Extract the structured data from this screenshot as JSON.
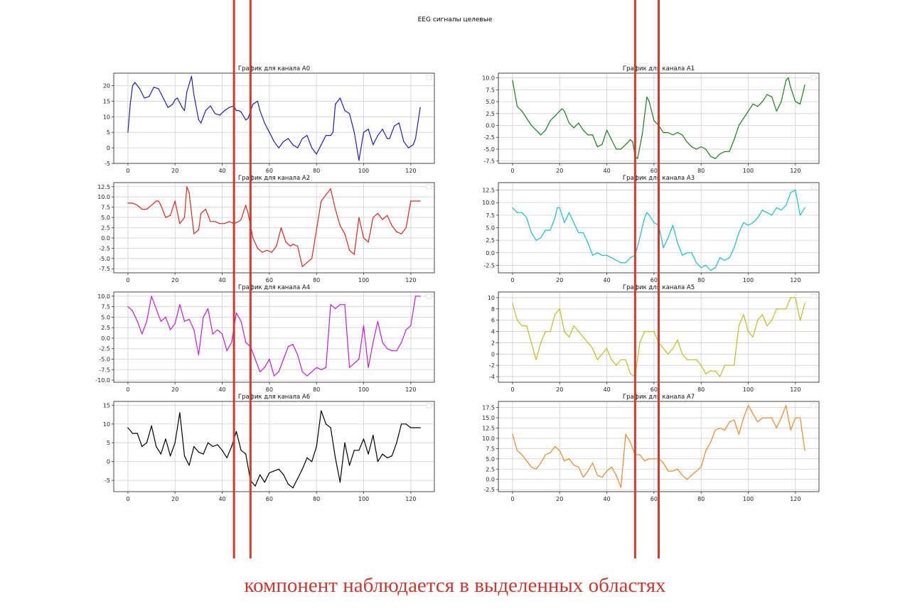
{
  "suptitle": "EEG сигналы целевые",
  "caption": "компонент наблюдается в выделенных областях",
  "highlight_color": "#d23a2e",
  "highlight_x": [
    [
      45,
      52
    ],
    [
      52,
      62
    ]
  ],
  "chart_data": [
    {
      "type": "line",
      "title": "График для канала A0",
      "color": "#1f1fb4",
      "xlim": [
        -6,
        130
      ],
      "ylim": [
        -5,
        24
      ],
      "xticks": [
        0,
        20,
        40,
        60,
        80,
        100,
        120
      ],
      "yticks": [
        -5,
        0,
        5,
        10,
        15,
        20
      ],
      "grid": true,
      "legend": "top-right (empty)",
      "x": [
        0,
        1,
        2,
        3,
        5,
        7,
        9,
        10,
        11,
        13,
        15,
        17,
        19,
        20,
        21,
        23,
        24,
        25,
        27,
        28,
        30,
        31,
        33,
        35,
        37,
        39,
        41,
        43,
        45,
        46,
        47,
        48,
        50,
        51,
        53,
        55,
        56,
        58,
        60,
        62,
        64,
        66,
        68,
        70,
        72,
        74,
        76,
        78,
        80,
        82,
        84,
        86,
        87,
        88,
        90,
        92,
        94,
        96,
        98,
        100,
        102,
        104,
        106,
        108,
        110,
        111,
        113,
        115,
        117,
        119,
        121,
        122,
        124
      ],
      "y": [
        5,
        14,
        20,
        21,
        19,
        16,
        16.5,
        18,
        19.5,
        19,
        16,
        13,
        14,
        15.5,
        16,
        13,
        12,
        18,
        23,
        17,
        9,
        8,
        12,
        13.5,
        11,
        10.5,
        12,
        13,
        13.5,
        12,
        12,
        11.5,
        9,
        9.5,
        14,
        15,
        12,
        8,
        5,
        2,
        0,
        2,
        3,
        1,
        0,
        3,
        4,
        0,
        -2,
        1,
        4,
        4,
        5,
        14,
        16,
        12,
        11,
        5,
        -4,
        5,
        6,
        1,
        4,
        6,
        3,
        3,
        7,
        8,
        2,
        0,
        1,
        3,
        13
      ]
    },
    {
      "type": "line",
      "title": "График для канала A1",
      "color": "#1a7f1a",
      "xlim": [
        -6,
        130
      ],
      "ylim": [
        -8,
        11
      ],
      "xticks": [
        0,
        20,
        40,
        60,
        80,
        100,
        120
      ],
      "yticks": [
        -7.5,
        -5.0,
        -2.5,
        0.0,
        2.5,
        5.0,
        7.5,
        10.0
      ],
      "grid": true,
      "legend": "top-right (empty)",
      "x": [
        0,
        2,
        4,
        6,
        8,
        10,
        12,
        14,
        16,
        18,
        20,
        21,
        22,
        24,
        26,
        28,
        30,
        32,
        34,
        36,
        38,
        40,
        42,
        44,
        46,
        48,
        50,
        51,
        52,
        53,
        55,
        57,
        58,
        60,
        62,
        64,
        66,
        68,
        70,
        72,
        74,
        76,
        78,
        80,
        82,
        84,
        86,
        88,
        90,
        92,
        94,
        96,
        98,
        100,
        102,
        104,
        106,
        108,
        110,
        112,
        114,
        116,
        117,
        118,
        120,
        122,
        124
      ],
      "y": [
        9.5,
        4,
        3,
        1.5,
        0,
        -1,
        -2,
        -1,
        1,
        2,
        3,
        3.5,
        3,
        0.5,
        -0.5,
        0.5,
        -1,
        -2,
        -2,
        -4.5,
        -4,
        -1,
        -3,
        -5,
        -5,
        -4,
        -3,
        -3.5,
        -6.5,
        -7,
        -2,
        6,
        5,
        1,
        0,
        -1.5,
        -1.5,
        -2,
        -1.5,
        -2,
        -3.5,
        -4.5,
        -5,
        -4.5,
        -5,
        -6.5,
        -7,
        -6,
        -5.5,
        -5.5,
        -3,
        0,
        1.5,
        3,
        4.5,
        4,
        5,
        6.5,
        6,
        3,
        5,
        9.5,
        10,
        8,
        5,
        4.5,
        8.5
      ]
    },
    {
      "type": "line",
      "title": "График для канала A2",
      "color": "#d62a1e",
      "xlim": [
        -6,
        130
      ],
      "ylim": [
        -8.5,
        13.5
      ],
      "xticks": [
        0,
        20,
        40,
        60,
        80,
        100,
        120
      ],
      "yticks": [
        -7.5,
        -5.0,
        -2.5,
        0.0,
        2.5,
        5.0,
        7.5,
        10.0,
        12.5
      ],
      "grid": true,
      "legend": "top-right (empty)",
      "x": [
        0,
        2,
        4,
        6,
        8,
        10,
        12,
        13,
        14,
        16,
        18,
        20,
        22,
        24,
        25,
        26,
        28,
        30,
        31,
        33,
        35,
        37,
        39,
        41,
        43,
        45,
        47,
        48,
        50,
        51,
        53,
        55,
        57,
        59,
        61,
        63,
        65,
        67,
        69,
        70,
        72,
        74,
        76,
        78,
        80,
        82,
        84,
        86,
        88,
        90,
        92,
        94,
        96,
        98,
        100,
        102,
        104,
        106,
        108,
        110,
        112,
        114,
        116,
        118,
        120,
        122,
        124
      ],
      "y": [
        8.5,
        8.5,
        8,
        7,
        7,
        8,
        9,
        9,
        8,
        5,
        5.5,
        9,
        3.5,
        5,
        12.5,
        11,
        1,
        2,
        6,
        7,
        4,
        4,
        3.5,
        3.5,
        4,
        3.5,
        4,
        4.5,
        8,
        6,
        0,
        -2.5,
        -3.5,
        -3,
        -3.5,
        -2,
        2.5,
        -1,
        -2,
        -1.5,
        -2,
        -7,
        -6,
        -5,
        2,
        9,
        10.5,
        12,
        7,
        3,
        1,
        -3,
        -4,
        5,
        0,
        -1,
        5,
        6,
        4.5,
        5.5,
        3,
        1.5,
        1,
        2.5,
        9,
        9,
        9
      ]
    },
    {
      "type": "line",
      "title": "График для канала A3",
      "color": "#17becf",
      "xlim": [
        -6,
        130
      ],
      "ylim": [
        -4,
        14
      ],
      "xticks": [
        0,
        20,
        40,
        60,
        80,
        100,
        120
      ],
      "yticks": [
        -2.5,
        0.0,
        2.5,
        5.0,
        7.5,
        10.0,
        12.5
      ],
      "grid": true,
      "legend": "top-right (empty)",
      "x": [
        0,
        2,
        4,
        6,
        8,
        10,
        12,
        14,
        16,
        18,
        19,
        20,
        22,
        24,
        26,
        28,
        30,
        32,
        34,
        36,
        38,
        40,
        42,
        44,
        46,
        48,
        50,
        52,
        54,
        56,
        57,
        58,
        60,
        62,
        64,
        66,
        68,
        70,
        72,
        74,
        76,
        78,
        80,
        82,
        84,
        86,
        88,
        90,
        92,
        94,
        96,
        98,
        100,
        102,
        104,
        106,
        108,
        110,
        112,
        114,
        116,
        118,
        120,
        122,
        124
      ],
      "y": [
        9,
        8,
        8,
        7,
        4,
        2.5,
        3,
        4.5,
        4.5,
        7,
        9,
        9,
        6,
        8,
        6,
        4,
        4,
        2,
        -0.5,
        0,
        -0.5,
        -0.5,
        -1,
        -1.5,
        -2,
        -2,
        -1,
        -0.5,
        3,
        7,
        8,
        7.5,
        6,
        5.5,
        1,
        3,
        5.5,
        2,
        -0.5,
        0,
        0,
        -2,
        -3,
        -2.5,
        -3.5,
        -3,
        -1,
        -1.5,
        -1,
        1,
        4,
        6,
        5.5,
        6,
        7,
        8.5,
        8,
        7.5,
        9,
        8.5,
        9.5,
        12,
        12.5,
        7.5,
        9
      ]
    },
    {
      "type": "line",
      "title": "График для канала A4",
      "color": "#bf1fcf",
      "xlim": [
        -6,
        130
      ],
      "ylim": [
        -10.5,
        11
      ],
      "xticks": [
        0,
        20,
        40,
        60,
        80,
        100,
        120
      ],
      "yticks": [
        -10.0,
        -7.5,
        -5.0,
        -2.5,
        0.0,
        2.5,
        5.0,
        7.5,
        10.0
      ],
      "grid": true,
      "legend": "top-right (empty)",
      "x": [
        0,
        2,
        4,
        6,
        8,
        10,
        12,
        14,
        16,
        18,
        20,
        22,
        24,
        26,
        28,
        30,
        32,
        34,
        36,
        38,
        40,
        42,
        44,
        46,
        48,
        50,
        52,
        54,
        56,
        58,
        60,
        62,
        64,
        66,
        68,
        70,
        72,
        74,
        76,
        78,
        80,
        82,
        84,
        86,
        88,
        90,
        92,
        94,
        96,
        98,
        100,
        102,
        104,
        106,
        108,
        110,
        112,
        114,
        116,
        118,
        120,
        122,
        124
      ],
      "y": [
        7.5,
        6.5,
        4,
        1,
        4,
        10,
        7,
        4,
        5,
        2,
        3.5,
        8,
        4,
        4.5,
        2,
        -4,
        5,
        7,
        1,
        2,
        1,
        -3,
        -1,
        6,
        4,
        -1,
        -2,
        -5,
        -8,
        -7,
        -5,
        -9,
        -8,
        -5,
        -2,
        -1.5,
        -4,
        -8,
        -9,
        -8,
        -7,
        -7.5,
        -7,
        8,
        7,
        8,
        8,
        -7,
        -6,
        -5,
        3,
        -7,
        -1,
        4,
        -1,
        -2.5,
        -3,
        -3,
        -1,
        2,
        3,
        10,
        10
      ]
    },
    {
      "type": "line",
      "title": "График для канала A5",
      "color": "#bcbd22",
      "xlim": [
        -6,
        130
      ],
      "ylim": [
        -5,
        11
      ],
      "xticks": [
        0,
        20,
        40,
        60,
        80,
        100,
        120
      ],
      "yticks": [
        -4,
        -2,
        0,
        2,
        4,
        6,
        8,
        10
      ],
      "grid": true,
      "legend": "top-right (empty)",
      "x": [
        0,
        2,
        4,
        6,
        8,
        10,
        12,
        14,
        16,
        18,
        20,
        22,
        24,
        26,
        28,
        30,
        32,
        34,
        36,
        38,
        40,
        42,
        44,
        46,
        48,
        50,
        52,
        54,
        56,
        58,
        60,
        62,
        64,
        66,
        68,
        70,
        72,
        74,
        76,
        78,
        80,
        82,
        84,
        86,
        88,
        90,
        92,
        94,
        96,
        98,
        100,
        102,
        104,
        106,
        108,
        110,
        112,
        114,
        116,
        118,
        120,
        122,
        124
      ],
      "y": [
        9,
        6,
        5,
        5,
        2,
        -1,
        2,
        4,
        4,
        7,
        8,
        4,
        3,
        5,
        4,
        3,
        2,
        1,
        -1,
        0,
        1,
        -1,
        -2,
        -1,
        -1,
        -3.5,
        -4,
        2,
        4,
        4,
        4,
        2,
        1,
        0,
        1,
        2.5,
        0,
        -1,
        -1,
        -1,
        -2,
        -3.5,
        -3,
        -3,
        -4,
        -2,
        -2,
        -2,
        5,
        7,
        4,
        3,
        6,
        7,
        5,
        6,
        8,
        8,
        8,
        10,
        10,
        6,
        9
      ]
    },
    {
      "type": "line",
      "title": "График для канала A6",
      "color": "#000000",
      "xlim": [
        -6,
        130
      ],
      "ylim": [
        -8,
        16
      ],
      "xticks": [
        0,
        20,
        40,
        60,
        80,
        100,
        120
      ],
      "yticks": [
        -5,
        0,
        5,
        10,
        15
      ],
      "grid": true,
      "legend": "top-right (empty)",
      "x": [
        0,
        2,
        4,
        6,
        8,
        10,
        12,
        14,
        16,
        18,
        20,
        22,
        24,
        26,
        28,
        30,
        32,
        34,
        36,
        38,
        40,
        42,
        44,
        46,
        48,
        50,
        52,
        54,
        56,
        58,
        60,
        62,
        64,
        66,
        68,
        70,
        72,
        74,
        76,
        78,
        80,
        82,
        84,
        86,
        88,
        90,
        92,
        94,
        96,
        98,
        100,
        102,
        104,
        106,
        108,
        110,
        112,
        114,
        116,
        118,
        120,
        122,
        124
      ],
      "y": [
        9,
        7.5,
        7.5,
        4,
        5,
        9.5,
        4,
        2,
        6,
        1.5,
        5,
        13,
        1.5,
        -1,
        4,
        2.5,
        2,
        5,
        4,
        4.5,
        3,
        1,
        4,
        8,
        3,
        2,
        -5,
        -6.5,
        -3.5,
        -5.5,
        -3,
        -2.5,
        -2,
        -3.5,
        -6,
        -7,
        -4.5,
        -2,
        1,
        0,
        4,
        13.5,
        10,
        9,
        1,
        -5.5,
        5,
        -1,
        3,
        3,
        6,
        2,
        7,
        0,
        2,
        1,
        1.5,
        5,
        10,
        10,
        9,
        9,
        9
      ]
    },
    {
      "type": "line",
      "title": "График для канала A7",
      "color": "#e8892b",
      "xlim": [
        -6,
        130
      ],
      "ylim": [
        -3,
        19
      ],
      "xticks": [
        0,
        20,
        40,
        60,
        80,
        100,
        120
      ],
      "yticks": [
        -2.5,
        0.0,
        2.5,
        5.0,
        7.5,
        10.0,
        12.5,
        15.0,
        17.5
      ],
      "grid": true,
      "legend": "top-right (empty)",
      "x": [
        0,
        2,
        4,
        6,
        8,
        10,
        12,
        14,
        16,
        18,
        20,
        22,
        24,
        26,
        28,
        30,
        32,
        34,
        36,
        38,
        40,
        42,
        44,
        46,
        48,
        50,
        52,
        54,
        56,
        58,
        60,
        62,
        64,
        66,
        68,
        70,
        72,
        74,
        76,
        78,
        80,
        82,
        84,
        86,
        88,
        90,
        92,
        94,
        96,
        98,
        100,
        102,
        104,
        106,
        108,
        110,
        112,
        114,
        116,
        118,
        120,
        122,
        124
      ],
      "y": [
        11,
        7,
        6,
        4.5,
        3,
        2.5,
        4,
        6,
        6.5,
        8,
        7,
        4.5,
        5,
        3.5,
        3,
        0.5,
        2,
        4,
        1,
        0.5,
        2,
        3,
        1,
        -2,
        11,
        9,
        6,
        6,
        4.5,
        5,
        5,
        5,
        4,
        2,
        2,
        2.5,
        1,
        0,
        1,
        2,
        3,
        7,
        9,
        12,
        12.5,
        12,
        14,
        14.5,
        11,
        15,
        18,
        16,
        14,
        15,
        15,
        15,
        12.5,
        15,
        18,
        12,
        15,
        15,
        7
      ]
    }
  ]
}
